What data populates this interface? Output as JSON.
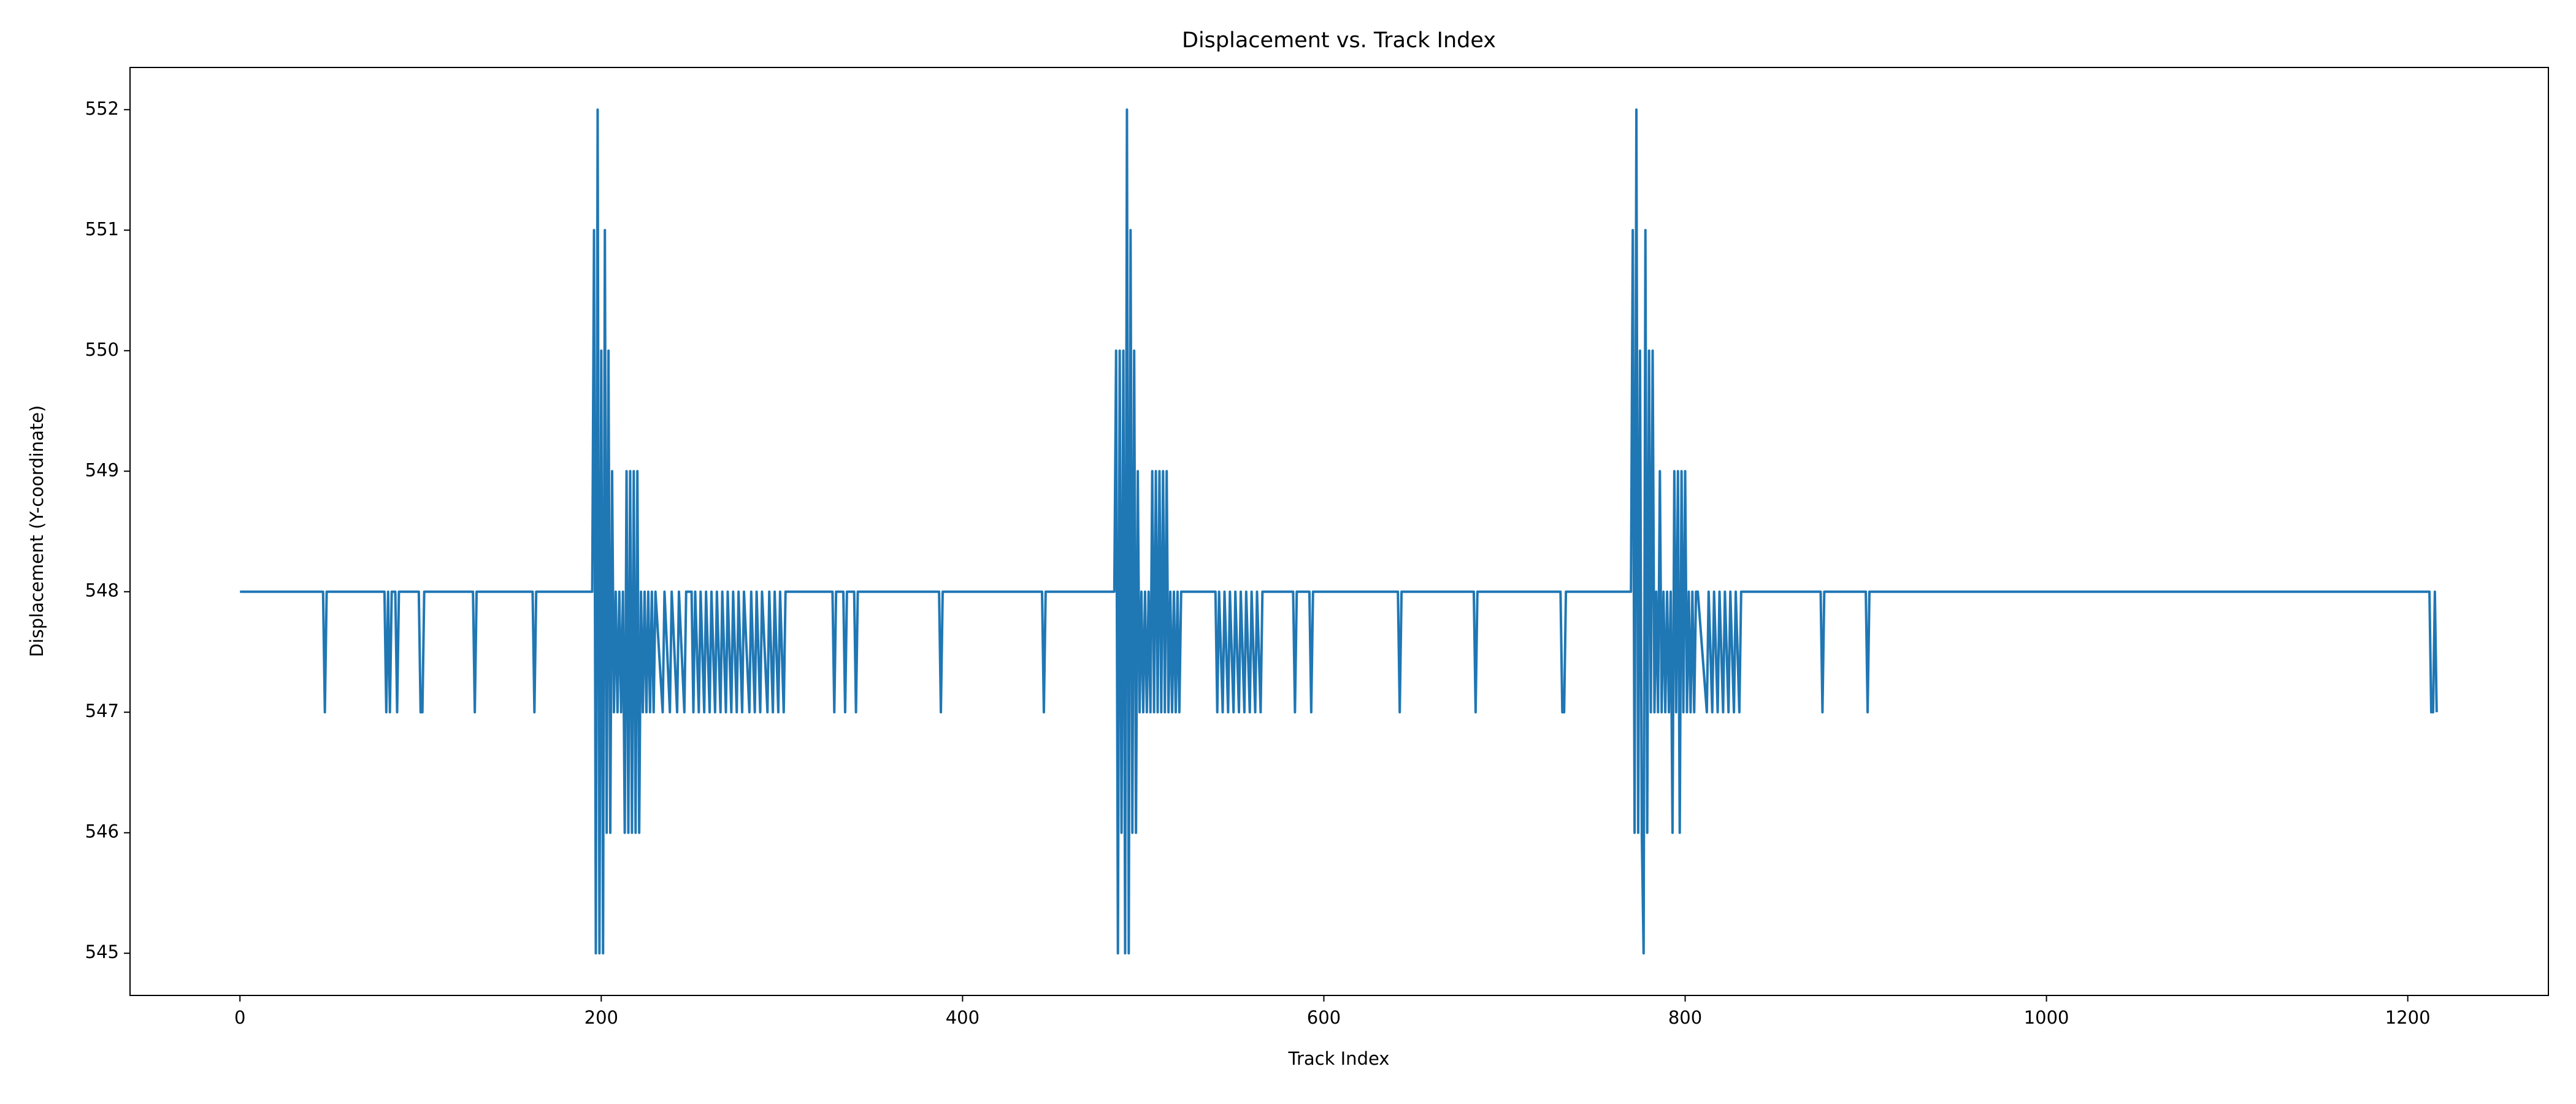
{
  "chart_data": {
    "type": "line",
    "title": "Displacement vs. Track Index",
    "x_label": "Track Index",
    "y_label": "Displacement (Y-coordinate)",
    "xlim": [
      -60.85,
      1277.85
    ],
    "ylim": [
      544.65,
      552.35
    ],
    "xticks": [
      0,
      200,
      400,
      600,
      800,
      1000,
      1200
    ],
    "yticks": [
      545,
      546,
      547,
      548,
      549,
      550,
      551,
      552
    ],
    "grid": false,
    "series": [
      {
        "name": "Displacement",
        "color": "#1f77b4",
        "x": [
          0,
          46,
          47,
          48,
          80,
          81,
          82,
          83,
          84,
          86,
          87,
          88,
          99,
          100,
          101,
          102,
          129,
          130,
          131,
          162,
          163,
          164,
          195,
          196,
          197,
          198,
          199,
          200,
          201,
          202,
          203,
          204,
          205,
          206,
          207,
          208,
          209,
          210,
          211,
          212,
          213,
          214,
          215,
          216,
          217,
          218,
          219,
          220,
          221,
          222,
          223,
          224,
          225,
          226,
          227,
          228,
          229,
          230,
          234,
          235,
          238,
          239,
          242,
          243,
          246,
          247,
          250,
          251,
          252,
          254,
          255,
          257,
          258,
          260,
          261,
          263,
          264,
          266,
          267,
          269,
          270,
          272,
          273,
          275,
          276,
          278,
          279,
          282,
          283,
          285,
          286,
          288,
          289,
          292,
          293,
          295,
          296,
          298,
          299,
          301,
          302,
          328,
          329,
          330,
          334,
          335,
          336,
          340,
          341,
          342,
          387,
          388,
          389,
          444,
          445,
          446,
          484,
          485,
          486,
          487,
          488,
          489,
          490,
          491,
          492,
          493,
          494,
          495,
          496,
          497,
          498,
          499,
          500,
          501,
          502,
          503,
          504,
          505,
          506,
          507,
          508,
          509,
          510,
          511,
          512,
          513,
          514,
          515,
          516,
          517,
          518,
          519,
          520,
          521,
          540,
          541,
          542,
          544,
          545,
          547,
          548,
          550,
          551,
          553,
          554,
          556,
          557,
          559,
          560,
          562,
          563,
          565,
          566,
          583,
          584,
          585,
          592,
          593,
          594,
          641,
          642,
          643,
          683,
          684,
          685,
          731,
          732,
          733,
          734,
          770,
          771,
          772,
          773,
          774,
          775,
          776,
          777,
          778,
          779,
          780,
          781,
          782,
          783,
          784,
          785,
          786,
          787,
          788,
          789,
          790,
          791,
          792,
          793,
          794,
          795,
          796,
          797,
          798,
          799,
          800,
          801,
          802,
          803,
          804,
          805,
          806,
          807,
          812,
          813,
          815,
          816,
          818,
          819,
          821,
          822,
          824,
          825,
          827,
          828,
          830,
          831,
          875,
          876,
          877,
          900,
          901,
          902,
          1212,
          1213,
          1214,
          1215,
          1216
        ],
        "values": [
          548,
          548,
          547,
          548,
          548,
          547,
          548,
          547,
          548,
          548,
          547,
          548,
          548,
          547,
          547,
          548,
          548,
          547,
          548,
          548,
          547,
          548,
          548,
          551,
          545,
          552,
          545,
          550,
          545,
          551,
          546,
          550,
          546,
          549,
          547,
          548,
          547,
          548,
          547,
          548,
          546,
          549,
          546,
          549,
          546,
          549,
          546,
          549,
          546,
          548,
          547,
          548,
          547,
          548,
          547,
          548,
          547,
          548,
          547,
          548,
          547,
          548,
          547,
          548,
          547,
          548,
          548,
          547,
          548,
          547,
          548,
          547,
          548,
          547,
          548,
          547,
          548,
          547,
          548,
          547,
          548,
          547,
          548,
          547,
          548,
          547,
          548,
          547,
          548,
          547,
          548,
          547,
          548,
          547,
          548,
          547,
          548,
          547,
          548,
          547,
          548,
          548,
          547,
          548,
          548,
          547,
          548,
          548,
          547,
          548,
          548,
          547,
          548,
          548,
          547,
          548,
          548,
          550,
          545,
          550,
          546,
          550,
          545,
          552,
          545,
          551,
          546,
          550,
          546,
          549,
          547,
          548,
          547,
          548,
          547,
          548,
          547,
          549,
          547,
          549,
          547,
          549,
          547,
          549,
          547,
          549,
          547,
          548,
          547,
          548,
          547,
          548,
          547,
          548,
          548,
          547,
          548,
          547,
          548,
          547,
          548,
          547,
          548,
          547,
          548,
          547,
          548,
          547,
          548,
          547,
          548,
          547,
          548,
          548,
          547,
          548,
          548,
          547,
          548,
          548,
          547,
          548,
          548,
          547,
          548,
          548,
          547,
          547,
          548,
          548,
          551,
          546,
          552,
          546,
          550,
          546,
          545,
          551,
          546,
          550,
          547,
          550,
          547,
          548,
          547,
          549,
          547,
          548,
          547,
          548,
          547,
          548,
          546,
          549,
          547,
          549,
          546,
          549,
          547,
          549,
          547,
          548,
          547,
          548,
          547,
          548,
          548,
          547,
          548,
          547,
          548,
          547,
          548,
          547,
          548,
          547,
          548,
          547,
          548,
          547,
          548,
          548,
          547,
          548,
          548,
          547,
          548,
          548,
          547,
          547,
          548,
          547
        ]
      }
    ]
  }
}
